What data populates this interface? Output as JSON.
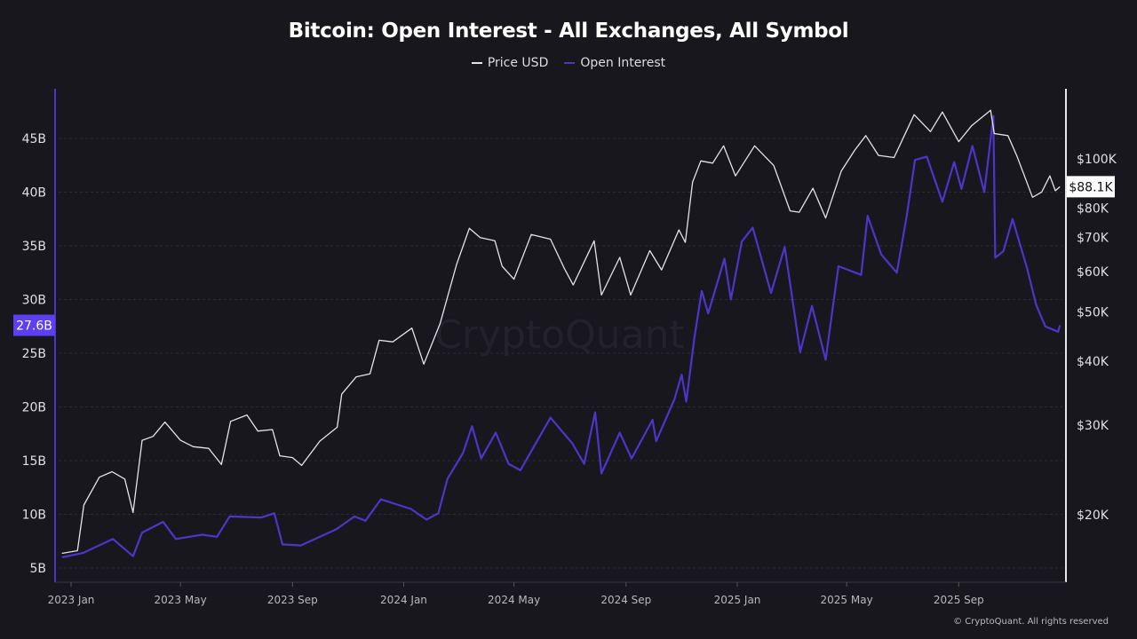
{
  "chart_data": {
    "type": "line",
    "title": "Bitcoin: Open Interest - All Exchanges, All Symbol",
    "legend_position": "top-center",
    "grid": true,
    "x_ticks": [
      {
        "date": "2023-01-01",
        "label": "2023 Jan"
      },
      {
        "date": "2023-05-01",
        "label": "2023 May"
      },
      {
        "date": "2023-09-01",
        "label": "2023 Sep"
      },
      {
        "date": "2024-01-01",
        "label": "2024 Jan"
      },
      {
        "date": "2024-05-01",
        "label": "2024 May"
      },
      {
        "date": "2024-09-01",
        "label": "2024 Sep"
      },
      {
        "date": "2025-01-01",
        "label": "2025 Jan"
      },
      {
        "date": "2025-05-01",
        "label": "2025 May"
      },
      {
        "date": "2025-09-01",
        "label": "2025 Sep"
      }
    ],
    "xlim": [
      "2022-12-20",
      "2025-12-22"
    ],
    "left_axis": {
      "ylim": [
        4,
        50.6
      ],
      "ticks": [
        5,
        10,
        15,
        20,
        25,
        30,
        35,
        40,
        45
      ],
      "tick_suffix": "B",
      "current_label": "27.6B",
      "current_value": 27.6
    },
    "right_axis": {
      "scale": "log",
      "ylim": [
        14.3,
        124.5
      ],
      "ticks": [
        20,
        30,
        40,
        50,
        60,
        70,
        80,
        100
      ],
      "tick_labels": [
        "$20K",
        "$30K",
        "$40K",
        "$50K",
        "$60K",
        "$70K",
        "$80K",
        "$100K"
      ],
      "current_label": "$88.1K",
      "current_value": 88.1
    },
    "series": [
      {
        "name": "Price USD",
        "axis": "right",
        "unit": "K USD",
        "color": "#e4e4e8",
        "points": [
          [
            "2022-12-22",
            16.8
          ],
          [
            "2023-01-08",
            17.0
          ],
          [
            "2023-01-15",
            20.9
          ],
          [
            "2023-02-01",
            23.7
          ],
          [
            "2023-02-15",
            24.3
          ],
          [
            "2023-03-01",
            23.5
          ],
          [
            "2023-03-10",
            20.2
          ],
          [
            "2023-03-20",
            28.0
          ],
          [
            "2023-04-01",
            28.5
          ],
          [
            "2023-04-14",
            30.4
          ],
          [
            "2023-05-01",
            28.0
          ],
          [
            "2023-05-15",
            27.2
          ],
          [
            "2023-06-01",
            27.0
          ],
          [
            "2023-06-15",
            25.1
          ],
          [
            "2023-06-25",
            30.5
          ],
          [
            "2023-07-13",
            31.4
          ],
          [
            "2023-07-25",
            29.2
          ],
          [
            "2023-08-10",
            29.4
          ],
          [
            "2023-08-18",
            26.1
          ],
          [
            "2023-09-01",
            25.9
          ],
          [
            "2023-09-11",
            25.0
          ],
          [
            "2023-10-01",
            27.9
          ],
          [
            "2023-10-20",
            29.7
          ],
          [
            "2023-10-25",
            34.5
          ],
          [
            "2023-11-10",
            37.3
          ],
          [
            "2023-11-25",
            37.8
          ],
          [
            "2023-12-05",
            44.0
          ],
          [
            "2023-12-20",
            43.7
          ],
          [
            "2024-01-10",
            46.5
          ],
          [
            "2024-01-23",
            39.5
          ],
          [
            "2024-02-10",
            47.5
          ],
          [
            "2024-02-28",
            62.0
          ],
          [
            "2024-03-13",
            73.0
          ],
          [
            "2024-03-25",
            70.0
          ],
          [
            "2024-04-10",
            69.0
          ],
          [
            "2024-04-18",
            61.5
          ],
          [
            "2024-05-01",
            58.0
          ],
          [
            "2024-05-20",
            71.0
          ],
          [
            "2024-06-10",
            69.5
          ],
          [
            "2024-06-25",
            61.0
          ],
          [
            "2024-07-05",
            56.5
          ],
          [
            "2024-07-28",
            69.0
          ],
          [
            "2024-08-05",
            54.0
          ],
          [
            "2024-08-25",
            64.0
          ],
          [
            "2024-09-06",
            54.0
          ],
          [
            "2024-09-27",
            66.0
          ],
          [
            "2024-10-10",
            60.5
          ],
          [
            "2024-10-29",
            72.5
          ],
          [
            "2024-11-05",
            68.5
          ],
          [
            "2024-11-13",
            90.0
          ],
          [
            "2024-11-22",
            99.0
          ],
          [
            "2024-12-05",
            98.0
          ],
          [
            "2024-12-17",
            106.0
          ],
          [
            "2024-12-30",
            92.5
          ],
          [
            "2025-01-20",
            106.0
          ],
          [
            "2025-02-10",
            97.0
          ],
          [
            "2025-02-28",
            79.0
          ],
          [
            "2025-03-10",
            78.5
          ],
          [
            "2025-03-25",
            87.5
          ],
          [
            "2025-04-08",
            76.5
          ],
          [
            "2025-04-25",
            94.5
          ],
          [
            "2025-05-10",
            104.0
          ],
          [
            "2025-05-22",
            111.0
          ],
          [
            "2025-06-05",
            101.5
          ],
          [
            "2025-06-22",
            100.5
          ],
          [
            "2025-07-14",
            122.0
          ],
          [
            "2025-08-01",
            113.0
          ],
          [
            "2025-08-14",
            123.5
          ],
          [
            "2025-09-01",
            108.0
          ],
          [
            "2025-09-15",
            116.0
          ],
          [
            "2025-10-06",
            124.5
          ],
          [
            "2025-10-10",
            112.0
          ],
          [
            "2025-10-25",
            111.0
          ],
          [
            "2025-11-04",
            101.0
          ],
          [
            "2025-11-21",
            84.0
          ],
          [
            "2025-12-01",
            86.0
          ],
          [
            "2025-12-10",
            92.5
          ],
          [
            "2025-12-16",
            86.5
          ],
          [
            "2025-12-21",
            88.1
          ]
        ]
      },
      {
        "name": "Open Interest",
        "axis": "left",
        "unit": "B USD",
        "color": "#4b36c9",
        "points": [
          [
            "2022-12-22",
            6.0
          ],
          [
            "2023-01-14",
            6.4
          ],
          [
            "2023-02-16",
            7.7
          ],
          [
            "2023-03-10",
            6.1
          ],
          [
            "2023-03-20",
            8.3
          ],
          [
            "2023-04-12",
            9.3
          ],
          [
            "2023-04-26",
            7.7
          ],
          [
            "2023-05-25",
            8.1
          ],
          [
            "2023-06-10",
            7.9
          ],
          [
            "2023-06-24",
            9.8
          ],
          [
            "2023-07-29",
            9.7
          ],
          [
            "2023-08-12",
            10.1
          ],
          [
            "2023-08-21",
            7.2
          ],
          [
            "2023-09-10",
            7.1
          ],
          [
            "2023-10-19",
            8.6
          ],
          [
            "2023-11-08",
            9.8
          ],
          [
            "2023-11-20",
            9.4
          ],
          [
            "2023-12-07",
            11.4
          ],
          [
            "2024-01-09",
            10.5
          ],
          [
            "2024-01-26",
            9.5
          ],
          [
            "2024-02-08",
            10.1
          ],
          [
            "2024-02-18",
            13.3
          ],
          [
            "2024-03-06",
            15.7
          ],
          [
            "2024-03-16",
            18.2
          ],
          [
            "2024-03-26",
            15.2
          ],
          [
            "2024-04-11",
            17.6
          ],
          [
            "2024-04-25",
            14.7
          ],
          [
            "2024-05-08",
            14.1
          ],
          [
            "2024-06-10",
            19.0
          ],
          [
            "2024-07-04",
            16.6
          ],
          [
            "2024-07-17",
            14.7
          ],
          [
            "2024-07-29",
            19.5
          ],
          [
            "2024-08-05",
            13.8
          ],
          [
            "2024-08-25",
            17.6
          ],
          [
            "2024-09-07",
            15.2
          ],
          [
            "2024-09-30",
            18.8
          ],
          [
            "2024-10-04",
            16.8
          ],
          [
            "2024-10-24",
            20.7
          ],
          [
            "2024-11-01",
            23.0
          ],
          [
            "2024-11-06",
            20.5
          ],
          [
            "2024-11-15",
            26.5
          ],
          [
            "2024-11-23",
            30.8
          ],
          [
            "2024-11-30",
            28.7
          ],
          [
            "2024-12-18",
            33.8
          ],
          [
            "2024-12-25",
            30.0
          ],
          [
            "2025-01-06",
            35.4
          ],
          [
            "2025-01-18",
            36.7
          ],
          [
            "2025-02-07",
            30.6
          ],
          [
            "2025-02-22",
            34.9
          ],
          [
            "2025-03-11",
            25.1
          ],
          [
            "2025-03-24",
            29.4
          ],
          [
            "2025-04-08",
            24.4
          ],
          [
            "2025-04-22",
            33.1
          ],
          [
            "2025-05-17",
            32.3
          ],
          [
            "2025-05-24",
            37.8
          ],
          [
            "2025-06-08",
            34.2
          ],
          [
            "2025-06-25",
            32.5
          ],
          [
            "2025-07-06",
            37.8
          ],
          [
            "2025-07-15",
            43.0
          ],
          [
            "2025-07-28",
            43.3
          ],
          [
            "2025-08-14",
            39.1
          ],
          [
            "2025-08-27",
            42.8
          ],
          [
            "2025-09-04",
            40.3
          ],
          [
            "2025-09-16",
            44.3
          ],
          [
            "2025-09-29",
            40.0
          ],
          [
            "2025-10-09",
            47.1
          ],
          [
            "2025-10-11",
            33.9
          ],
          [
            "2025-10-20",
            34.5
          ],
          [
            "2025-10-30",
            37.5
          ],
          [
            "2025-11-15",
            32.9
          ],
          [
            "2025-11-25",
            29.5
          ],
          [
            "2025-12-05",
            27.5
          ],
          [
            "2025-12-19",
            27.0
          ],
          [
            "2025-12-21",
            27.6
          ]
        ]
      }
    ]
  },
  "watermark": "CryptoQuant",
  "copyright": "© CryptoQuant. All rights reserved",
  "colors": {
    "background": "#18171d",
    "price": "#e4e4e8",
    "open_interest": "#4b36c9",
    "oi_badge": "#5b3ff0"
  }
}
